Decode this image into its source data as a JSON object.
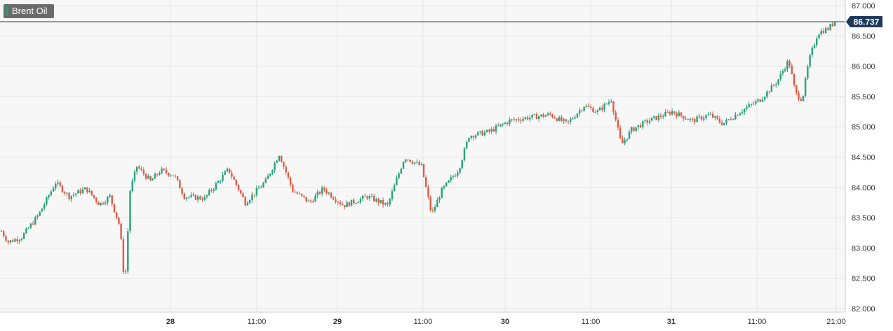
{
  "legend": {
    "label": "Brent Oil",
    "color": "#6b6b6b"
  },
  "last_price_label": "86.737",
  "colors": {
    "up": "#26a17b",
    "down": "#e15a42",
    "grid": "#e6e6e6",
    "price_line": "#1f3a5a",
    "axis_text": "#333333",
    "background": "#f7f7f7"
  },
  "chart_data": {
    "type": "candlestick",
    "title": "Brent Oil",
    "last_price": 86.737,
    "ylim": [
      81.95,
      87.05
    ],
    "y_ticks": [
      "82.000",
      "82.500",
      "83.000",
      "83.500",
      "84.000",
      "84.500",
      "85.000",
      "85.500",
      "86.000",
      "86.500",
      "87.000"
    ],
    "x_ticks": [
      "28",
      "11:00",
      "29",
      "11:00",
      "30",
      "11:00",
      "31",
      "11:00",
      "21:00"
    ],
    "grid": true,
    "series_path": [
      {
        "t": 0,
        "v": 83.28
      },
      {
        "t": 0.1,
        "v": 83.1
      },
      {
        "t": 0.3,
        "v": 83.18
      },
      {
        "t": 0.55,
        "v": 83.55
      },
      {
        "t": 0.8,
        "v": 84.08
      },
      {
        "t": 1.0,
        "v": 83.85
      },
      {
        "t": 1.25,
        "v": 83.98
      },
      {
        "t": 1.45,
        "v": 83.72
      },
      {
        "t": 1.6,
        "v": 83.85
      },
      {
        "t": 1.75,
        "v": 83.35
      },
      {
        "t": 1.82,
        "v": 82.35
      },
      {
        "t": 1.9,
        "v": 83.95
      },
      {
        "t": 2.0,
        "v": 84.35
      },
      {
        "t": 2.2,
        "v": 84.1
      },
      {
        "t": 2.35,
        "v": 84.28
      },
      {
        "t": 2.55,
        "v": 84.2
      },
      {
        "t": 2.7,
        "v": 83.85
      },
      {
        "t": 3.0,
        "v": 83.82
      },
      {
        "t": 3.35,
        "v": 84.3
      },
      {
        "t": 3.6,
        "v": 83.75
      },
      {
        "t": 3.9,
        "v": 84.1
      },
      {
        "t": 4.1,
        "v": 84.55
      },
      {
        "t": 4.3,
        "v": 83.95
      },
      {
        "t": 4.55,
        "v": 83.75
      },
      {
        "t": 4.75,
        "v": 83.98
      },
      {
        "t": 5.05,
        "v": 83.7
      },
      {
        "t": 5.4,
        "v": 83.85
      },
      {
        "t": 5.7,
        "v": 83.7
      },
      {
        "t": 5.95,
        "v": 84.5
      },
      {
        "t": 6.2,
        "v": 84.35
      },
      {
        "t": 6.35,
        "v": 83.55
      },
      {
        "t": 6.5,
        "v": 83.95
      },
      {
        "t": 6.75,
        "v": 84.3
      },
      {
        "t": 6.9,
        "v": 84.85
      },
      {
        "t": 7.2,
        "v": 84.92
      },
      {
        "t": 7.5,
        "v": 85.1
      },
      {
        "t": 7.75,
        "v": 85.15
      },
      {
        "t": 8.1,
        "v": 85.2
      },
      {
        "t": 8.35,
        "v": 85.05
      },
      {
        "t": 8.6,
        "v": 85.35
      },
      {
        "t": 8.8,
        "v": 85.25
      },
      {
        "t": 9.0,
        "v": 85.45
      },
      {
        "t": 9.15,
        "v": 84.7
      },
      {
        "t": 9.3,
        "v": 84.95
      },
      {
        "t": 9.55,
        "v": 85.1
      },
      {
        "t": 9.9,
        "v": 85.25
      },
      {
        "t": 10.2,
        "v": 85.1
      },
      {
        "t": 10.45,
        "v": 85.2
      },
      {
        "t": 10.65,
        "v": 85.05
      },
      {
        "t": 10.9,
        "v": 85.25
      },
      {
        "t": 11.2,
        "v": 85.45
      },
      {
        "t": 11.45,
        "v": 85.75
      },
      {
        "t": 11.62,
        "v": 86.1
      },
      {
        "t": 11.72,
        "v": 85.55
      },
      {
        "t": 11.82,
        "v": 85.45
      },
      {
        "t": 11.92,
        "v": 86.1
      },
      {
        "t": 12.05,
        "v": 86.55
      },
      {
        "t": 12.2,
        "v": 86.62
      },
      {
        "t": 12.3,
        "v": 86.737
      }
    ]
  }
}
